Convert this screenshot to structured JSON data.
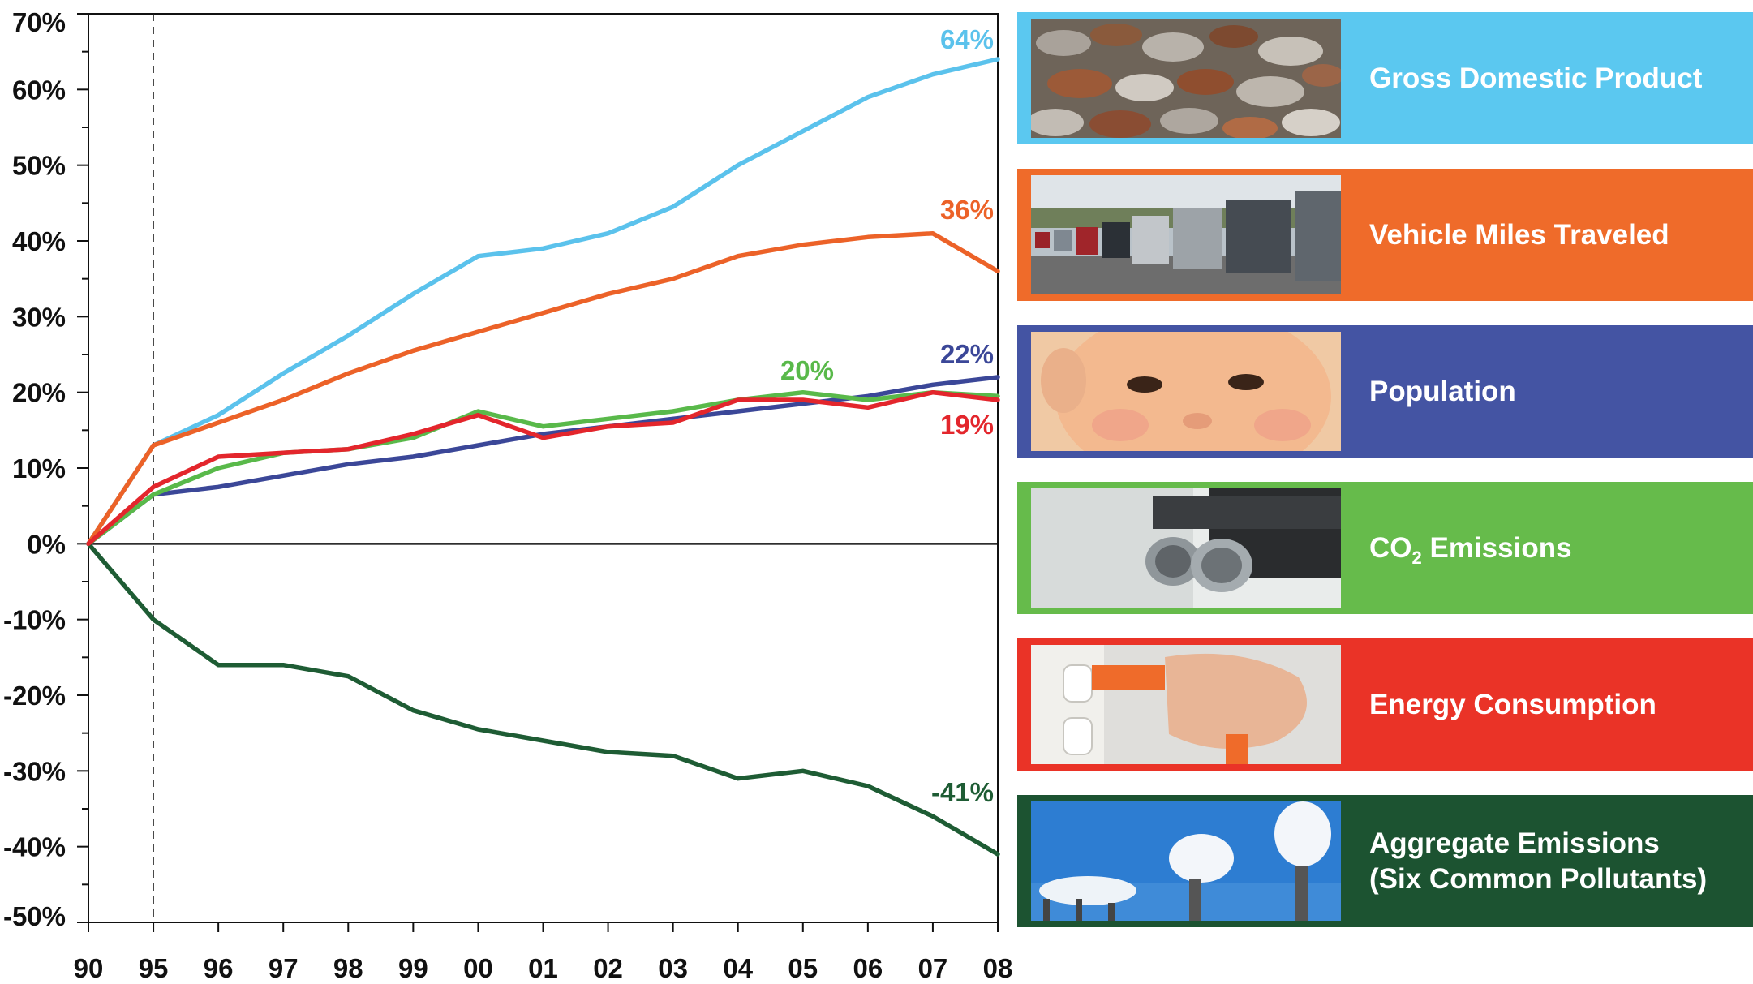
{
  "chart_data": {
    "type": "line",
    "title": "",
    "xlabel": "",
    "ylabel": "",
    "x": [
      "90",
      "95",
      "96",
      "97",
      "98",
      "99",
      "00",
      "01",
      "02",
      "03",
      "04",
      "05",
      "06",
      "07",
      "08"
    ],
    "ylim": [
      -50,
      70
    ],
    "yticks": [
      "70%",
      "60%",
      "50%",
      "40%",
      "30%",
      "20%",
      "10%",
      "0%",
      "-10%",
      "-20%",
      "-30%",
      "-40%",
      "-50%"
    ],
    "ytick_values": [
      70,
      60,
      50,
      40,
      30,
      20,
      10,
      0,
      -10,
      -20,
      -30,
      -40,
      -50
    ],
    "reference_line_x": "95",
    "grid": false,
    "legend_position": "right",
    "series": [
      {
        "name": "Gross Domestic Product",
        "color": "#5bc2ec",
        "end_label": "64%",
        "values": [
          0,
          13,
          17,
          22.5,
          27.5,
          33,
          38,
          39,
          41,
          44.5,
          50,
          54.5,
          59,
          62,
          64
        ]
      },
      {
        "name": "Vehicle Miles Traveled",
        "color": "#ec6228",
        "end_label": "36%",
        "values": [
          0,
          13,
          16,
          19,
          22.5,
          25.5,
          28,
          30.5,
          33,
          35,
          38,
          39.5,
          40.5,
          41,
          36
        ]
      },
      {
        "name": "Population",
        "color": "#3b4798",
        "end_label": "22%",
        "values": [
          0,
          6.5,
          7.5,
          9,
          10.5,
          11.5,
          13,
          14.5,
          15.5,
          16.5,
          17.5,
          18.5,
          19.5,
          21,
          22
        ]
      },
      {
        "name": "CO2 Emissions",
        "color": "#59b94a",
        "end_label": "20%",
        "values": [
          0,
          6.5,
          10,
          12,
          12.5,
          14,
          17.5,
          15.5,
          16.5,
          17.5,
          19,
          20,
          19,
          20,
          19.5
        ]
      },
      {
        "name": "Energy Consumption",
        "color": "#e3262c",
        "end_label": "19%",
        "values": [
          0,
          7.5,
          11.5,
          12,
          12.5,
          14.5,
          17,
          14,
          15.5,
          16,
          19,
          19,
          18,
          20,
          19
        ]
      },
      {
        "name": "Aggregate Emissions (Six Common Pollutants)",
        "color": "#1e5c34",
        "end_label": "-41%",
        "values": [
          0,
          -10,
          -16,
          -16,
          -17.5,
          -22,
          -24.5,
          -26,
          -27.5,
          -28,
          -31,
          -30,
          -32,
          -36,
          -41
        ]
      }
    ]
  },
  "legend": {
    "items": [
      {
        "line1": "Gross Domestic Product",
        "line2": "",
        "bg": "#5bc8f0",
        "photo": "coins-photo"
      },
      {
        "line1": "Vehicle Miles Traveled",
        "line2": "",
        "bg": "#ef6b2a",
        "photo": "traffic-photo"
      },
      {
        "line1": "Population",
        "line2": "",
        "bg": "#4454a3",
        "photo": "baby-photo"
      },
      {
        "line1_prefix": "CO",
        "line1_sub": "2",
        "line1_suffix": " Emissions",
        "bg": "#66bb4b",
        "photo": "exhaust-pipe-photo"
      },
      {
        "line1": "Energy Consumption",
        "line2": "",
        "bg": "#ea3327",
        "photo": "plug-outlet-photo"
      },
      {
        "line1": "Aggregate Emissions",
        "line2": "(Six Common Pollutants)",
        "bg": "#1c5331",
        "photo": "smokestacks-photo"
      }
    ]
  }
}
